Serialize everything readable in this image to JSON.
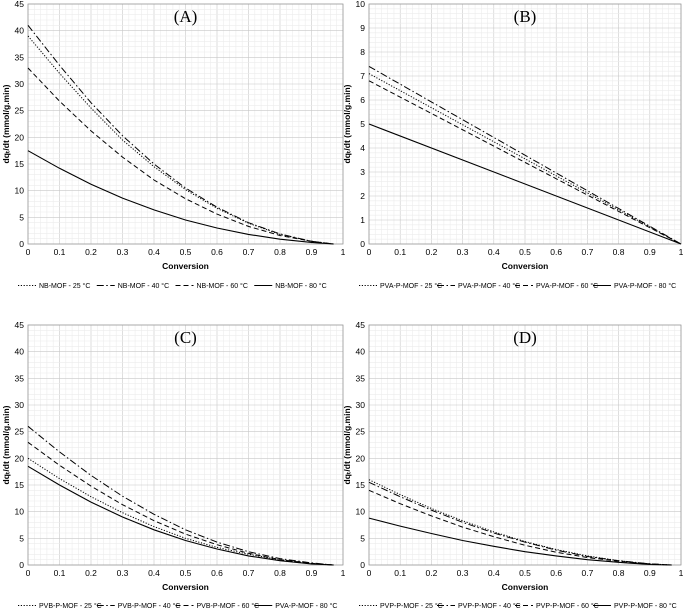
{
  "chart_data": [
    {
      "type": "line",
      "panel_label": "(A)",
      "xlabel": "Conversion",
      "ylabel": "dqₜ/dt (mmol/g.min)",
      "xlim": [
        0,
        1
      ],
      "ylim": [
        0,
        45
      ],
      "x_ticks": [
        "0",
        "0.1",
        "0.2",
        "0.3",
        "0.4",
        "0.5",
        "0.6",
        "0.7",
        "0.8",
        "0.9",
        "1"
      ],
      "y_ticks": [
        "0",
        "5",
        "10",
        "15",
        "20",
        "25",
        "30",
        "35",
        "40",
        "45"
      ],
      "grid": true,
      "legend_position": "bottom",
      "x": [
        0,
        0.1,
        0.2,
        0.3,
        0.4,
        0.5,
        0.6,
        0.7,
        0.8,
        0.9,
        0.97
      ],
      "series": [
        {
          "name": "NB-MOF - 25 °C",
          "style": "dotted",
          "values": [
            39.0,
            32.0,
            25.5,
            19.5,
            14.5,
            10.2,
            6.7,
            3.9,
            1.8,
            0.5,
            0
          ]
        },
        {
          "name": "NB-MOF - 40 °C",
          "style": "dash-dot",
          "values": [
            41.0,
            33.5,
            26.5,
            20.3,
            15.0,
            10.5,
            6.9,
            4.0,
            1.9,
            0.5,
            0
          ]
        },
        {
          "name": "NB-MOF - 60 °C",
          "style": "dashed",
          "values": [
            33.0,
            26.8,
            21.2,
            16.3,
            12.0,
            8.5,
            5.6,
            3.3,
            1.6,
            0.5,
            0
          ]
        },
        {
          "name": "NB-MOF - 80 °C",
          "style": "solid",
          "values": [
            17.5,
            14.2,
            11.2,
            8.6,
            6.4,
            4.5,
            3.0,
            1.8,
            0.9,
            0.3,
            0
          ]
        }
      ]
    },
    {
      "type": "line",
      "panel_label": "(B)",
      "xlabel": "Conversion",
      "ylabel": "dqₜ/dt (mmol/g.min)",
      "xlim": [
        0,
        1
      ],
      "ylim": [
        0,
        10
      ],
      "x_ticks": [
        "0",
        "0.1",
        "0.2",
        "0.3",
        "0.4",
        "0.5",
        "0.6",
        "0.7",
        "0.8",
        "0.9",
        "1"
      ],
      "y_ticks": [
        "0",
        "1",
        "2",
        "3",
        "4",
        "5",
        "6",
        "7",
        "8",
        "9",
        "10"
      ],
      "grid": true,
      "legend_position": "bottom",
      "x": [
        0,
        1
      ],
      "series": [
        {
          "name": "PVA-P-MOF - 25 °C",
          "style": "dotted",
          "values": [
            7.1,
            0
          ]
        },
        {
          "name": "PVA-P-MOF - 40 °C",
          "style": "dash-dot",
          "values": [
            7.4,
            0
          ]
        },
        {
          "name": "PVA-P-MOF - 60 °C",
          "style": "dashed",
          "values": [
            6.8,
            0
          ]
        },
        {
          "name": "PVA-P-MOF - 80 °C",
          "style": "solid",
          "values": [
            5.0,
            0
          ]
        }
      ]
    },
    {
      "type": "line",
      "panel_label": "(C)",
      "xlabel": "Conversion",
      "ylabel": "dqₜ/dt (mmol/g.min)",
      "xlim": [
        0,
        1
      ],
      "ylim": [
        0,
        45
      ],
      "x_ticks": [
        "0",
        "0.1",
        "0.2",
        "0.3",
        "0.4",
        "0.5",
        "0.6",
        "0.7",
        "0.8",
        "0.9",
        "1"
      ],
      "y_ticks": [
        "0",
        "5",
        "10",
        "15",
        "20",
        "25",
        "30",
        "35",
        "40",
        "45"
      ],
      "grid": true,
      "legend_position": "bottom",
      "x": [
        0,
        0.1,
        0.2,
        0.3,
        0.4,
        0.5,
        0.6,
        0.7,
        0.8,
        0.9,
        0.97
      ],
      "series": [
        {
          "name": "PVB-P-MOF - 25 °C",
          "style": "dotted",
          "values": [
            20.0,
            16.2,
            12.8,
            9.8,
            7.2,
            5.0,
            3.3,
            2.0,
            1.0,
            0.3,
            0
          ]
        },
        {
          "name": "PVB-P-MOF - 40 °C",
          "style": "dash-dot",
          "values": [
            26.0,
            21.2,
            16.8,
            12.9,
            9.5,
            6.6,
            4.3,
            2.5,
            1.2,
            0.4,
            0
          ]
        },
        {
          "name": "PVB-P-MOF - 60 °C",
          "style": "dashed",
          "values": [
            23.0,
            18.7,
            14.8,
            11.3,
            8.3,
            5.8,
            3.8,
            2.2,
            1.0,
            0.3,
            0
          ]
        },
        {
          "name": "PVA-P-MOF - 80 °C",
          "style": "solid",
          "values": [
            18.5,
            15.0,
            11.8,
            9.0,
            6.6,
            4.6,
            3.0,
            1.7,
            0.8,
            0.2,
            0
          ]
        }
      ]
    },
    {
      "type": "line",
      "panel_label": "(D)",
      "xlabel": "Conversion",
      "ylabel": "dqₜ/dt (mmol/g.min)",
      "xlim": [
        0,
        1
      ],
      "ylim": [
        0,
        45
      ],
      "x_ticks": [
        "0",
        "0.1",
        "0.2",
        "0.3",
        "0.4",
        "0.5",
        "0.6",
        "0.7",
        "0.8",
        "0.9",
        "1"
      ],
      "y_ticks": [
        "0",
        "5",
        "10",
        "15",
        "20",
        "25",
        "30",
        "35",
        "40",
        "45"
      ],
      "grid": true,
      "legend_position": "bottom",
      "x": [
        0,
        0.1,
        0.2,
        0.3,
        0.4,
        0.5,
        0.6,
        0.7,
        0.8,
        0.9,
        0.97
      ],
      "series": [
        {
          "name": "PVP-P-MOF - 25 °C",
          "style": "dotted",
          "values": [
            16.0,
            13.2,
            10.6,
            8.3,
            6.2,
            4.4,
            2.9,
            1.7,
            0.8,
            0.2,
            0
          ]
        },
        {
          "name": "PVP-P-MOF - 40 °C",
          "style": "dash-dot",
          "values": [
            15.5,
            12.8,
            10.3,
            8.0,
            6.0,
            4.3,
            2.8,
            1.6,
            0.8,
            0.2,
            0
          ]
        },
        {
          "name": "PVP-P-MOF - 60 °C",
          "style": "dashed",
          "values": [
            14.0,
            11.5,
            9.2,
            7.1,
            5.3,
            3.7,
            2.4,
            1.4,
            0.7,
            0.2,
            0
          ]
        },
        {
          "name": "PVP-P-MOF - 80 °C",
          "style": "solid",
          "values": [
            8.8,
            7.3,
            5.9,
            4.6,
            3.5,
            2.5,
            1.7,
            1.0,
            0.5,
            0.1,
            0
          ]
        }
      ]
    }
  ]
}
